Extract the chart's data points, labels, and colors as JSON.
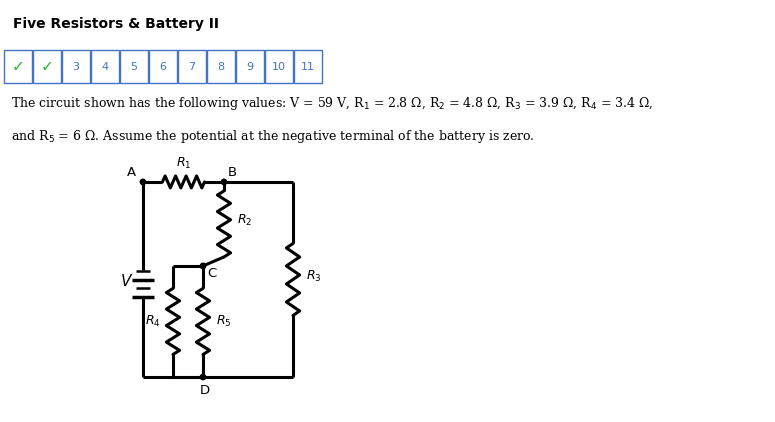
{
  "title": "Five Resistors & Battery II",
  "nav_items": [
    "✓",
    "✓",
    "3",
    "4",
    "5",
    "6",
    "7",
    "8",
    "9",
    "10",
    "11"
  ],
  "problem_text_line1": "The circuit shown has the following values: V = 59 V, R$_1$ = 2.8 Ω, R$_2$ = 4.8 Ω, R$_3$ = 3.9 Ω, R$_4$ = 3.4 Ω,",
  "problem_text_line2": "and R$_5$ = 6 Ω. Assume the potential at the negative terminal of the battery is zero.",
  "bg_color": "#ffffff",
  "border_color": "#4472c4",
  "title_bg": "#e0e0e0",
  "nav_check_color": "#2db32d",
  "nav_number_color": "#4472c4",
  "text_color": "#000000",
  "circuit_color": "#000000"
}
